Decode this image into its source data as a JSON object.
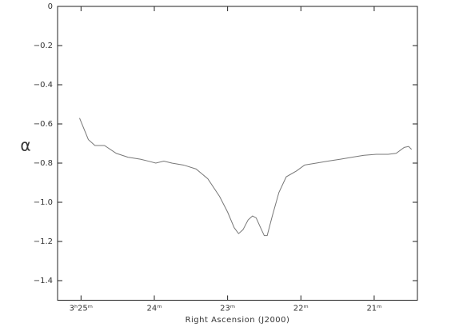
{
  "chart_data": {
    "type": "line",
    "x_label": "Right Ascension (J2000)",
    "y_label": "α",
    "x": [
      25.02,
      24.9,
      24.81,
      24.68,
      24.52,
      24.36,
      24.19,
      24.08,
      23.98,
      23.87,
      23.76,
      23.6,
      23.43,
      23.27,
      23.11,
      23.0,
      22.91,
      22.85,
      22.79,
      22.72,
      22.66,
      22.61,
      22.55,
      22.5,
      22.46,
      22.39,
      22.3,
      22.2,
      22.06,
      21.95,
      21.79,
      21.63,
      21.46,
      21.3,
      21.14,
      20.97,
      20.81,
      20.7,
      20.59,
      20.53,
      20.49
    ],
    "series": [
      {
        "color": "#777777",
        "values": [
          -0.57,
          -0.68,
          -0.71,
          -0.71,
          -0.75,
          -0.77,
          -0.78,
          -0.79,
          -0.8,
          -0.79,
          -0.8,
          -0.81,
          -0.83,
          -0.88,
          -0.97,
          -1.05,
          -1.13,
          -1.16,
          -1.14,
          -1.09,
          -1.07,
          -1.08,
          -1.13,
          -1.17,
          -1.17,
          -1.07,
          -0.95,
          -0.87,
          -0.84,
          -0.81,
          -0.8,
          -0.79,
          -0.78,
          -0.77,
          -0.76,
          -0.755,
          -0.755,
          -0.75,
          -0.72,
          -0.715,
          -0.73
        ]
      }
    ],
    "xlim": [
      25.32,
      20.41
    ],
    "xticks": [
      {
        "value": 25,
        "label": "3ʰ25ᵐ"
      },
      {
        "value": 24,
        "label": "24ᵐ"
      },
      {
        "value": 23,
        "label": "23ᵐ"
      },
      {
        "value": 22,
        "label": "22ᵐ"
      },
      {
        "value": 21,
        "label": "21ᵐ"
      }
    ],
    "ylim": [
      -1.5,
      0
    ],
    "yticks": [
      0,
      {
        "value": -0.2,
        "label": "−0.2"
      },
      {
        "value": -0.4,
        "label": "−0.4"
      },
      {
        "value": -0.6,
        "label": "−0.6"
      },
      {
        "value": -0.8,
        "label": "−0.8"
      },
      {
        "value": -1.0,
        "label": "−1.0"
      },
      {
        "value": -1.2,
        "label": "−1.2"
      },
      {
        "value": -1.4,
        "label": "−1.4"
      }
    ]
  }
}
